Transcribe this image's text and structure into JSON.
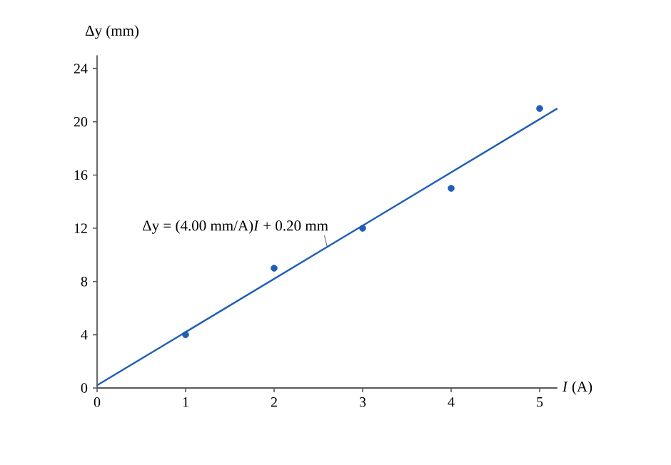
{
  "chart_data": {
    "type": "scatter",
    "xlabel": "*I* (A)",
    "ylabel": "Δy (mm)",
    "x": [
      1,
      2,
      3,
      4,
      5
    ],
    "series": [
      {
        "color": "#1f5fb4",
        "values": [
          4,
          9,
          12,
          15,
          21
        ],
        "marker": "circle"
      },
      {
        "type": "line",
        "x": [
          0,
          5.2
        ],
        "values": [
          0.2,
          21
        ],
        "color": "#1f5fb4",
        "marker": "none"
      }
    ],
    "xlim": [
      0,
      5.2
    ],
    "ylim": [
      0,
      25
    ],
    "xticks": [
      0,
      1,
      2,
      3,
      4,
      5
    ],
    "yticks": [
      0,
      4,
      8,
      12,
      16,
      20,
      24
    ],
    "annotations": [
      {
        "text": "Δy = (4.00 mm/A)*I* + 0.20 mm",
        "x": 2.6,
        "y": 10.6
      }
    ],
    "grid": false
  }
}
